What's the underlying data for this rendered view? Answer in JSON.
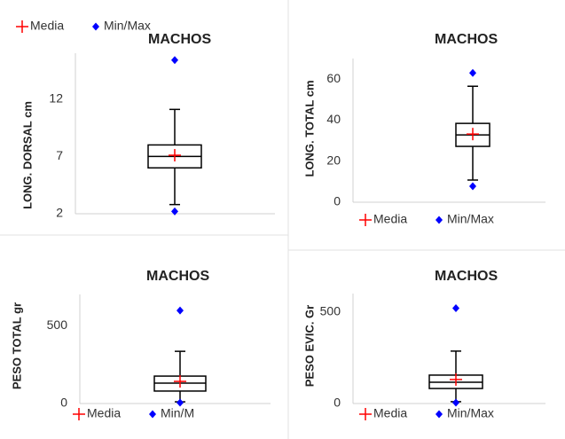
{
  "chart_data": [
    {
      "type": "box",
      "title": "MACHOS",
      "y_label": "LONG. DORSAL cm",
      "ylim": [
        2,
        16
      ],
      "yticks": [
        2,
        7,
        12
      ],
      "legend": "top",
      "series": [
        {
          "name": "Media",
          "color": "#ff0000"
        },
        {
          "name": "Min/Max",
          "color": "#0000ff"
        }
      ],
      "stats": {
        "whisker_low": 2.8,
        "q1": 6.0,
        "median": 7.0,
        "q3": 8.0,
        "whisker_high": 11.1,
        "mean": 7.1,
        "min": 2.2,
        "max": 15.4
      }
    },
    {
      "type": "box",
      "title": "MACHOS",
      "y_label": "LONG. TOTAL  cm",
      "ylim": [
        0,
        70
      ],
      "yticks": [
        0,
        20,
        40,
        60
      ],
      "legend": "bottom",
      "series": [
        {
          "name": "Media",
          "color": "#ff0000"
        },
        {
          "name": "Min/Max",
          "color": "#0000ff"
        }
      ],
      "stats": {
        "whisker_low": 10.8,
        "q1": 27.2,
        "median": 32.8,
        "q3": 38.4,
        "whisker_high": 56.5,
        "mean": 33.2,
        "min": 7.8,
        "max": 63
      }
    },
    {
      "type": "box",
      "title": "MACHOS",
      "y_label": "PESO TOTAL gr",
      "ylim": [
        0,
        700
      ],
      "yticks": [
        0,
        500
      ],
      "legend": "bottom",
      "series": [
        {
          "name": "Media",
          "color": "#ff0000"
        },
        {
          "name": "Min/M",
          "color": "#0000ff"
        }
      ],
      "stats": {
        "whisker_low": 11,
        "q1": 80,
        "median": 131,
        "q3": 176,
        "whisker_high": 335,
        "mean": 142,
        "min": 6,
        "max": 597
      }
    },
    {
      "type": "box",
      "title": "MACHOS",
      "y_label": "PESO EVIC. Gr",
      "ylim": [
        0,
        600
      ],
      "yticks": [
        0,
        500
      ],
      "legend": "bottom",
      "series": [
        {
          "name": "Media",
          "color": "#ff0000"
        },
        {
          "name": "Min/Max",
          "color": "#0000ff"
        }
      ],
      "stats": {
        "whisker_low": 10,
        "q1": 82,
        "median": 116,
        "q3": 155,
        "whisker_high": 286,
        "mean": 131,
        "min": 5,
        "max": 520
      }
    }
  ]
}
